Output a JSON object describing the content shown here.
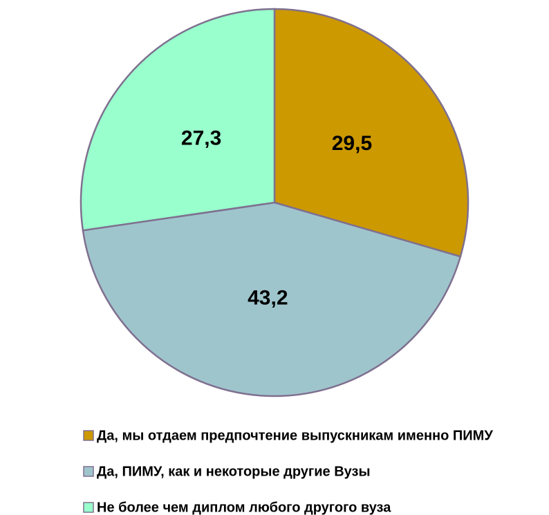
{
  "chart_data": {
    "type": "pie",
    "categories": [
      "Да, мы отдаем предпочтение выпускникам именно ПИМУ",
      "Да, ПИМУ, как и некоторые другие Вузы",
      "Не более чем диплом любого другого вуза"
    ],
    "values": [
      29.5,
      43.2,
      27.3
    ],
    "value_labels": [
      "29,5",
      "43,2",
      "27,3"
    ],
    "colors": [
      "#cc9900",
      "#9fc5cc",
      "#99ffcc"
    ],
    "legend": "bottom"
  }
}
